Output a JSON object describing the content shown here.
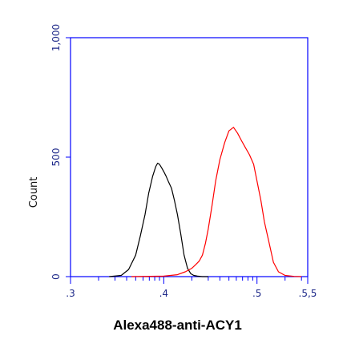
{
  "chart_data": {
    "type": "line",
    "xlabel": "Alexa488-anti-ACY1",
    "ylabel": "Count",
    "xscale": "log",
    "xlim": [
      1000,
      350000
    ],
    "ylim": [
      0,
      1000
    ],
    "x_ticks": [
      {
        "value": 1000,
        "label": ".3"
      },
      {
        "value": 10000,
        "label": ".4"
      },
      {
        "value": 100000,
        "label": ".5"
      },
      {
        "value": 350000,
        "label": ".5,5"
      }
    ],
    "y_ticks": [
      {
        "value": 0,
        "label": "0"
      },
      {
        "value": 500,
        "label": "500"
      },
      {
        "value": 1000,
        "label": "1,000"
      }
    ],
    "grid": false,
    "series": [
      {
        "color": "#000000",
        "x": [
          2600,
          3500,
          4200,
          5000,
          5600,
          6300,
          6900,
          7600,
          8200,
          8600,
          9000,
          9500,
          10000,
          10600,
          11300,
          12100,
          13000,
          14000,
          15200,
          16500,
          18000,
          19500,
          21000,
          23000,
          26000,
          30000
        ],
        "y": [
          0,
          5,
          30,
          90,
          170,
          260,
          350,
          420,
          460,
          475,
          470,
          455,
          440,
          420,
          395,
          370,
          320,
          260,
          180,
          90,
          35,
          12,
          5,
          2,
          0,
          0
        ]
      },
      {
        "color": "#ff0000",
        "x": [
          4500,
          10000,
          14000,
          17000,
          20000,
          22000,
          24000,
          26000,
          28000,
          30000,
          33000,
          36000,
          40000,
          45000,
          50000,
          56000,
          62000,
          68000,
          75000,
          83000,
          92000,
          100000,
          110000,
          120000,
          135000,
          150000,
          170000,
          200000,
          250000,
          300000
        ],
        "y": [
          0,
          2,
          8,
          20,
          35,
          50,
          65,
          90,
          140,
          200,
          300,
          400,
          490,
          560,
          610,
          625,
          600,
          570,
          540,
          510,
          470,
          400,
          320,
          230,
          140,
          60,
          20,
          5,
          1,
          0
        ]
      }
    ]
  }
}
